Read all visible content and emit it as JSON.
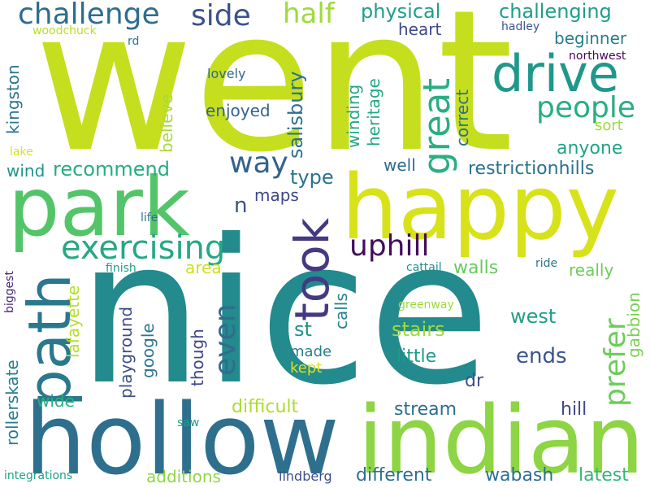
{
  "words": [
    {
      "text": "went",
      "color": "#c5df1f"
    },
    {
      "text": "nice",
      "color": "#238a8d"
    },
    {
      "text": "hollow",
      "color": "#2e6f8e"
    },
    {
      "text": "indian",
      "color": "#8dd544"
    },
    {
      "text": "happy",
      "color": "#d7e21a"
    },
    {
      "text": "park",
      "color": "#53c569"
    },
    {
      "text": "drive",
      "color": "#1f988b"
    },
    {
      "text": "path",
      "color": "#2a788e"
    },
    {
      "text": "took",
      "color": "#443a83"
    },
    {
      "text": "exercising",
      "color": "#25a884"
    },
    {
      "text": "great",
      "color": "#2aae80"
    },
    {
      "text": "people",
      "color": "#29af7f"
    },
    {
      "text": "challenge",
      "color": "#2e6d8e"
    },
    {
      "text": "uphill",
      "color": "#440c5e"
    },
    {
      "text": "even",
      "color": "#2f6c8e"
    },
    {
      "text": "prefer",
      "color": "#6ccd5a"
    },
    {
      "text": "side",
      "color": "#3b528b"
    },
    {
      "text": "half",
      "color": "#9fda3a"
    },
    {
      "text": "way",
      "color": "#33638d"
    },
    {
      "text": "physical",
      "color": "#1f9e89"
    },
    {
      "text": "challenging",
      "color": "#1f9e89"
    },
    {
      "text": "heart",
      "color": "#3e4a89"
    },
    {
      "text": "beginner",
      "color": "#287d8e"
    },
    {
      "text": "northwest",
      "color": "#46085c"
    },
    {
      "text": "woodchuck",
      "color": "#b8de29"
    },
    {
      "text": "rd",
      "color": "#2a768e"
    },
    {
      "text": "hadley",
      "color": "#3a548c"
    },
    {
      "text": "lovely",
      "color": "#31688e"
    },
    {
      "text": "kingston",
      "color": "#2b748e"
    },
    {
      "text": "salisbury",
      "color": "#2c718e"
    },
    {
      "text": "heritage",
      "color": "#22a884"
    },
    {
      "text": "winding",
      "color": "#22a785"
    },
    {
      "text": "correct",
      "color": "#2e6f8e"
    },
    {
      "text": "believe",
      "color": "#a8db34"
    },
    {
      "text": "enjoyed",
      "color": "#33638d"
    },
    {
      "text": "sort",
      "color": "#a0da39"
    },
    {
      "text": "anyone",
      "color": "#20a386"
    },
    {
      "text": "lake",
      "color": "#d8e219"
    },
    {
      "text": "recommend",
      "color": "#27ad81"
    },
    {
      "text": "wind",
      "color": "#1f958b"
    },
    {
      "text": "type",
      "color": "#2c728e"
    },
    {
      "text": "well",
      "color": "#2f6b8e"
    },
    {
      "text": "restrictionhills",
      "color": "#2c718e"
    },
    {
      "text": "maps",
      "color": "#404688"
    },
    {
      "text": "n",
      "color": "#3b528b"
    },
    {
      "text": "life",
      "color": "#2c728e"
    },
    {
      "text": "area",
      "color": "#cae11f"
    },
    {
      "text": "walls",
      "color": "#65cb5e"
    },
    {
      "text": "biggest",
      "color": "#482576"
    },
    {
      "text": "finish",
      "color": "#1fa088"
    },
    {
      "text": "cattail",
      "color": "#21918c"
    },
    {
      "text": "ride",
      "color": "#2c728e"
    },
    {
      "text": "really",
      "color": "#6ece58"
    },
    {
      "text": "gabbion",
      "color": "#7ad151"
    },
    {
      "text": "lafayette",
      "color": "#b5de2b"
    },
    {
      "text": "playground",
      "color": "#3e4c8a"
    },
    {
      "text": "google",
      "color": "#2b758e"
    },
    {
      "text": "though",
      "color": "#3f4788"
    },
    {
      "text": "calls",
      "color": "#26828e"
    },
    {
      "text": "greenway",
      "color": "#9bd93c"
    },
    {
      "text": "west",
      "color": "#1f9e89"
    },
    {
      "text": "st",
      "color": "#20928c"
    },
    {
      "text": "stairs",
      "color": "#a2da37"
    },
    {
      "text": "ends",
      "color": "#3a548c"
    },
    {
      "text": "made",
      "color": "#26818e"
    },
    {
      "text": "little",
      "color": "#1f9a8a"
    },
    {
      "text": "kept",
      "color": "#dde318"
    },
    {
      "text": "dr",
      "color": "#3b528b"
    },
    {
      "text": "rollerskate",
      "color": "#287c8e"
    },
    {
      "text": "wide",
      "color": "#29af7f"
    },
    {
      "text": "difficult",
      "color": "#addc30"
    },
    {
      "text": "stream",
      "color": "#2e6e8e"
    },
    {
      "text": "hill",
      "color": "#3f4889"
    },
    {
      "text": "saw",
      "color": "#1fa187"
    },
    {
      "text": "integrations",
      "color": "#20a486"
    },
    {
      "text": "additions",
      "color": "#90d743"
    },
    {
      "text": "lindberg",
      "color": "#3d4e8a"
    },
    {
      "text": "different",
      "color": "#2d708e"
    },
    {
      "text": "wabash",
      "color": "#2d708e"
    },
    {
      "text": "latest",
      "color": "#35b779"
    }
  ]
}
